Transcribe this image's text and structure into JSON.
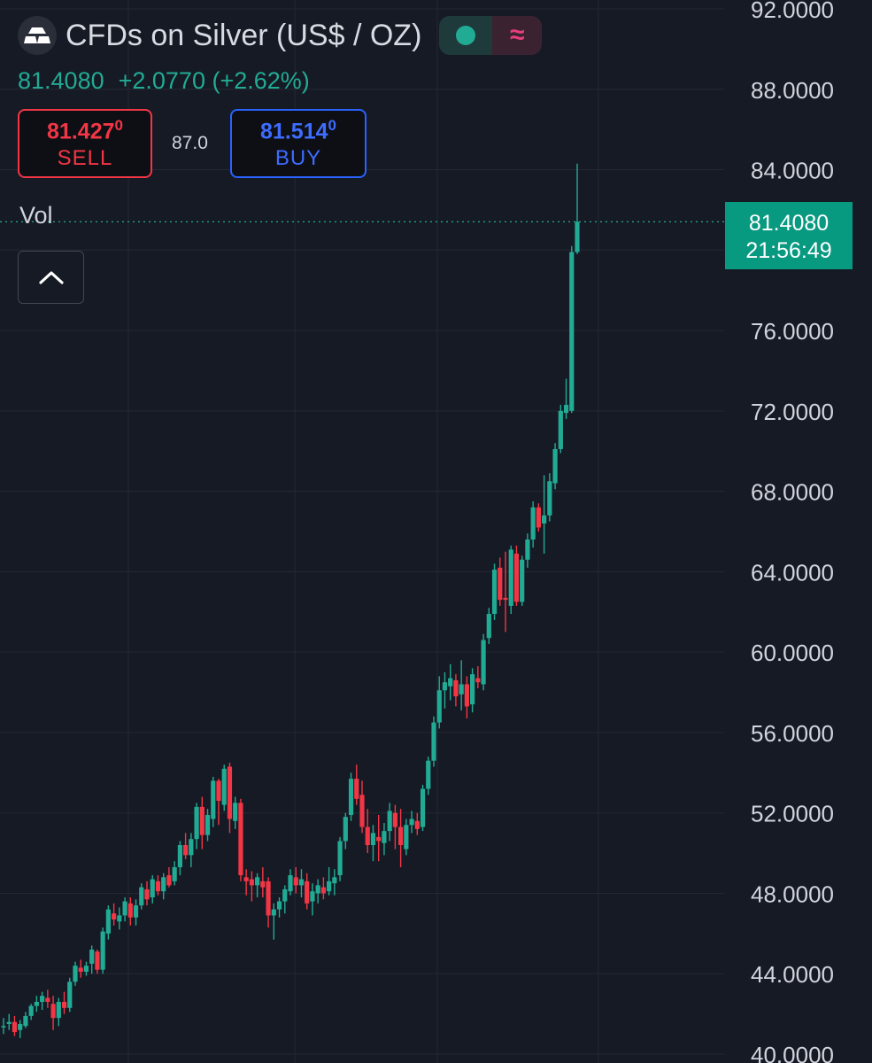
{
  "header": {
    "logo_icon": "silver-bars-icon",
    "title": "CFDs on Silver (US$ / OZ)",
    "status_dot_color": "#22ab94",
    "waves_icon_glyph": "≈"
  },
  "quote": {
    "last": "81.4080",
    "change": "+2.0770",
    "change_pct": "(+2.62%)"
  },
  "trade": {
    "sell_price_main": "81.427",
    "sell_price_sup": "0",
    "sell_label": "SELL",
    "spread": "87.0",
    "buy_price_main": "81.514",
    "buy_price_sup": "0",
    "buy_label": "BUY"
  },
  "indicator": {
    "vol_label": "Vol"
  },
  "last_price_label": {
    "price": "81.4080",
    "time": "21:56:49"
  },
  "colors": {
    "up": "#22ab94",
    "down": "#f23645",
    "background": "#161a25",
    "grid": "#242833",
    "axis_text": "#d1d4dc"
  },
  "chart_data": {
    "type": "candlestick",
    "title": "CFDs on Silver (US$ / OZ)",
    "ylim": [
      40,
      92
    ],
    "y_ticks": [
      "92.0000",
      "88.0000",
      "84.0000",
      "80.0000",
      "76.0000",
      "72.0000",
      "68.0000",
      "64.0000",
      "60.0000",
      "56.0000",
      "52.0000",
      "48.0000",
      "44.0000",
      "40.0000"
    ],
    "last_price": 81.408,
    "grid": true,
    "candles": [
      [
        41.4,
        41.8,
        41.0,
        41.4
      ],
      [
        41.5,
        42.0,
        41.2,
        41.6
      ],
      [
        41.6,
        41.9,
        40.9,
        41.1
      ],
      [
        41.2,
        41.7,
        40.8,
        41.5
      ],
      [
        41.4,
        42.1,
        41.3,
        41.9
      ],
      [
        41.9,
        42.5,
        41.7,
        42.4
      ],
      [
        42.4,
        42.9,
        42.1,
        42.6
      ],
      [
        42.6,
        43.1,
        42.2,
        42.9
      ],
      [
        42.8,
        43.2,
        42.3,
        42.6
      ],
      [
        42.5,
        42.9,
        41.2,
        41.8
      ],
      [
        41.8,
        42.8,
        41.4,
        42.6
      ],
      [
        42.6,
        43.1,
        42.0,
        42.3
      ],
      [
        42.3,
        43.8,
        42.1,
        43.6
      ],
      [
        43.6,
        44.6,
        43.4,
        44.4
      ],
      [
        44.3,
        44.7,
        43.8,
        44.1
      ],
      [
        44.1,
        44.6,
        43.9,
        44.4
      ],
      [
        44.5,
        45.4,
        44.0,
        45.2
      ],
      [
        45.1,
        45.2,
        44.0,
        44.2
      ],
      [
        44.2,
        46.3,
        44.0,
        46.1
      ],
      [
        46.0,
        47.4,
        45.7,
        47.2
      ],
      [
        47.0,
        47.5,
        46.4,
        46.7
      ],
      [
        46.6,
        47.3,
        46.2,
        46.9
      ],
      [
        46.9,
        47.8,
        46.6,
        47.6
      ],
      [
        47.5,
        47.8,
        46.4,
        46.8
      ],
      [
        46.8,
        47.7,
        46.4,
        47.4
      ],
      [
        47.4,
        48.5,
        47.2,
        48.3
      ],
      [
        48.2,
        48.6,
        47.4,
        47.7
      ],
      [
        47.8,
        48.9,
        47.5,
        48.7
      ],
      [
        48.6,
        48.9,
        47.9,
        48.1
      ],
      [
        48.1,
        49.0,
        47.7,
        48.8
      ],
      [
        48.9,
        49.3,
        48.3,
        48.4
      ],
      [
        48.6,
        49.6,
        48.4,
        49.3
      ],
      [
        49.3,
        50.6,
        48.9,
        50.4
      ],
      [
        50.4,
        51.0,
        49.7,
        49.9
      ],
      [
        49.9,
        51.0,
        49.3,
        50.7
      ],
      [
        50.7,
        52.5,
        50.2,
        52.3
      ],
      [
        52.3,
        52.8,
        50.2,
        50.9
      ],
      [
        50.9,
        52.2,
        50.6,
        51.9
      ],
      [
        51.7,
        53.8,
        51.3,
        53.6
      ],
      [
        53.6,
        53.7,
        51.4,
        52.6
      ],
      [
        52.4,
        54.4,
        52.1,
        54.2
      ],
      [
        54.3,
        54.5,
        51.0,
        51.7
      ],
      [
        51.6,
        52.8,
        51.2,
        52.5
      ],
      [
        52.5,
        52.7,
        48.6,
        48.9
      ],
      [
        48.8,
        49.2,
        47.9,
        48.6
      ],
      [
        48.7,
        49.1,
        47.6,
        48.4
      ],
      [
        48.4,
        49.0,
        47.8,
        48.8
      ],
      [
        48.6,
        49.3,
        47.8,
        48.3
      ],
      [
        48.6,
        48.8,
        46.3,
        46.9
      ],
      [
        46.9,
        47.5,
        45.7,
        47.2
      ],
      [
        47.2,
        47.8,
        46.8,
        47.6
      ],
      [
        47.6,
        48.4,
        47.0,
        48.2
      ],
      [
        48.1,
        49.2,
        47.9,
        48.9
      ],
      [
        48.8,
        49.3,
        48.0,
        48.4
      ],
      [
        48.4,
        49.2,
        47.8,
        48.7
      ],
      [
        48.6,
        49.0,
        47.2,
        47.5
      ],
      [
        47.6,
        48.5,
        46.9,
        48.1
      ],
      [
        48.0,
        48.7,
        47.5,
        48.4
      ],
      [
        48.3,
        48.8,
        47.7,
        48.0
      ],
      [
        48.1,
        49.3,
        47.9,
        48.6
      ],
      [
        48.5,
        49.2,
        47.9,
        48.8
      ],
      [
        48.9,
        50.8,
        48.6,
        50.6
      ],
      [
        50.6,
        52.0,
        50.2,
        51.8
      ],
      [
        51.9,
        54.0,
        51.6,
        53.7
      ],
      [
        53.7,
        54.4,
        52.4,
        52.7
      ],
      [
        52.9,
        53.6,
        51.0,
        51.3
      ],
      [
        51.3,
        52.2,
        50.0,
        50.4
      ],
      [
        50.4,
        51.4,
        49.6,
        51.0
      ],
      [
        50.8,
        51.9,
        49.6,
        50.6
      ],
      [
        50.5,
        51.5,
        49.9,
        51.1
      ],
      [
        51.1,
        52.5,
        50.6,
        52.1
      ],
      [
        52.0,
        52.4,
        50.2,
        51.3
      ],
      [
        51.3,
        52.2,
        49.3,
        50.4
      ],
      [
        50.2,
        51.7,
        49.9,
        51.4
      ],
      [
        51.4,
        52.1,
        51.0,
        51.7
      ],
      [
        51.6,
        52.0,
        50.9,
        51.2
      ],
      [
        51.3,
        53.4,
        51.1,
        53.2
      ],
      [
        53.2,
        54.8,
        52.9,
        54.6
      ],
      [
        54.6,
        56.8,
        54.3,
        56.5
      ],
      [
        56.5,
        58.8,
        56.2,
        58.1
      ],
      [
        58.1,
        59.0,
        57.2,
        58.5
      ],
      [
        58.3,
        59.4,
        57.6,
        58.7
      ],
      [
        58.6,
        58.9,
        57.3,
        57.8
      ],
      [
        57.9,
        59.6,
        57.1,
        58.4
      ],
      [
        58.4,
        58.8,
        56.7,
        57.3
      ],
      [
        57.4,
        59.2,
        57.0,
        58.9
      ],
      [
        58.7,
        59.3,
        58.2,
        58.5
      ],
      [
        58.4,
        60.9,
        58.1,
        60.6
      ],
      [
        60.7,
        62.2,
        60.4,
        61.9
      ],
      [
        61.9,
        64.4,
        61.6,
        64.1
      ],
      [
        64.2,
        64.7,
        62.3,
        62.6
      ],
      [
        62.7,
        65.0,
        61.0,
        62.6
      ],
      [
        62.3,
        65.3,
        61.9,
        65.1
      ],
      [
        64.9,
        65.3,
        62.3,
        62.5
      ],
      [
        62.5,
        64.8,
        62.3,
        64.6
      ],
      [
        64.6,
        65.9,
        64.2,
        65.6
      ],
      [
        65.6,
        67.5,
        65.2,
        67.2
      ],
      [
        67.2,
        67.4,
        66.0,
        66.2
      ],
      [
        66.4,
        68.8,
        64.9,
        66.8
      ],
      [
        66.8,
        68.9,
        66.5,
        68.5
      ],
      [
        68.4,
        70.4,
        68.1,
        70.1
      ],
      [
        70.1,
        72.3,
        69.9,
        72.0
      ],
      [
        71.9,
        73.6,
        71.6,
        72.3
      ],
      [
        72.0,
        80.2,
        71.9,
        79.9
      ],
      [
        79.9,
        84.3,
        79.8,
        81.408
      ]
    ]
  }
}
